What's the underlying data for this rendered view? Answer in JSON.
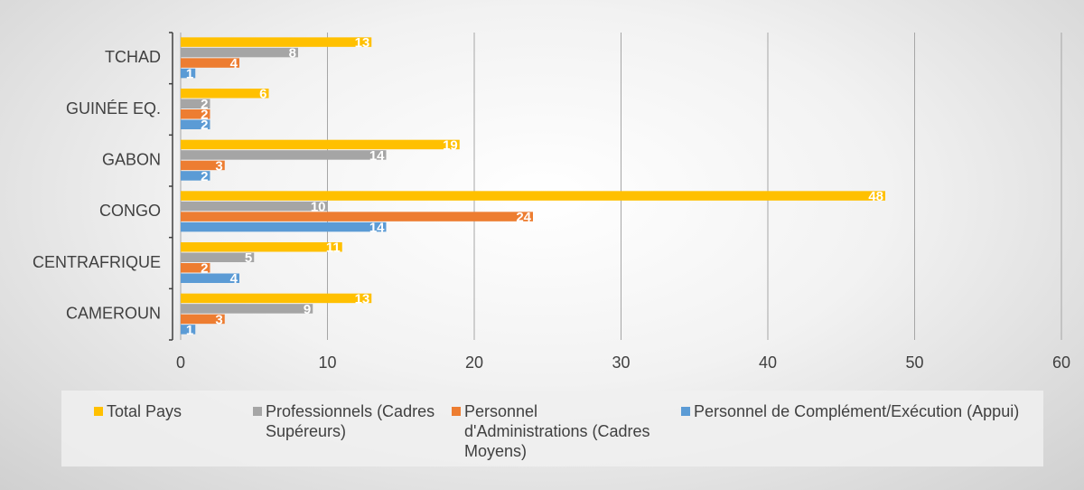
{
  "chart_data": {
    "type": "hbar",
    "categories": [
      "TCHAD",
      "GUINÉE EQ.",
      "GABON",
      "CONGO",
      "CENTRAFRIQUE",
      "CAMEROUN"
    ],
    "series": [
      {
        "name": "Total Pays",
        "color": "#ffc000",
        "values": [
          13,
          6,
          19,
          48,
          11,
          13
        ]
      },
      {
        "name": "Professionnels (Cadres Supéreurs)",
        "color": "#a5a5a5",
        "values": [
          8,
          2,
          14,
          10,
          5,
          9
        ]
      },
      {
        "name": "Personnel d'Administrations (Cadres Moyens)",
        "color": "#ed7d31",
        "values": [
          4,
          2,
          3,
          24,
          2,
          3
        ]
      },
      {
        "name": "Personnel de Complément/Exécution (Appui)",
        "color": "#5b9bd5",
        "values": [
          1,
          2,
          2,
          14,
          4,
          1
        ]
      }
    ],
    "xlim": [
      0,
      60
    ],
    "xticks": [
      0,
      10,
      20,
      30,
      40,
      50,
      60
    ],
    "grid": true,
    "legend": "bottom"
  }
}
